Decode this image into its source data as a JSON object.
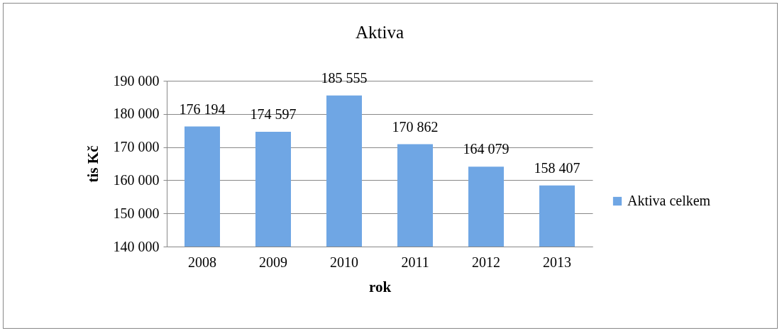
{
  "chart_data": {
    "type": "bar",
    "title": "Aktiva",
    "xlabel": "rok",
    "ylabel": "tis Kč",
    "categories": [
      "2008",
      "2009",
      "2010",
      "2011",
      "2012",
      "2013"
    ],
    "series": [
      {
        "name": "Aktiva celkem",
        "color": "#6fa6e4",
        "values": [
          176194,
          174597,
          185555,
          170862,
          164079,
          158407
        ],
        "value_labels": [
          "176 194",
          "174 597",
          "185 555",
          "170 862",
          "164 079",
          "158 407"
        ]
      }
    ],
    "ylim": [
      140000,
      190000
    ],
    "yticks": [
      {
        "value": 140000,
        "label": "140 000"
      },
      {
        "value": 150000,
        "label": "150 000"
      },
      {
        "value": 160000,
        "label": "160 000"
      },
      {
        "value": 170000,
        "label": "170 000"
      },
      {
        "value": 180000,
        "label": "180 000"
      },
      {
        "value": 190000,
        "label": "190 000"
      }
    ],
    "grid": "y",
    "legend": "right"
  }
}
